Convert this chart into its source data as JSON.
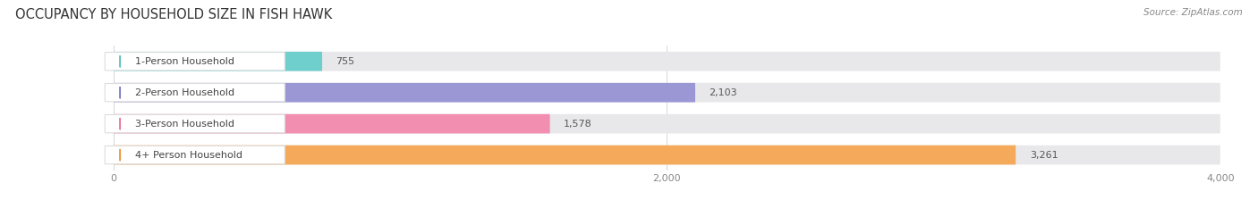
{
  "title": "OCCUPANCY BY HOUSEHOLD SIZE IN FISH HAWK",
  "source": "Source: ZipAtlas.com",
  "categories": [
    "1-Person Household",
    "2-Person Household",
    "3-Person Household",
    "4+ Person Household"
  ],
  "values": [
    755,
    2103,
    1578,
    3261
  ],
  "bar_colors": [
    "#6ecfcc",
    "#9b97d4",
    "#f28fb0",
    "#f5a95b"
  ],
  "dot_colors": [
    "#5bbfbc",
    "#7b77c4",
    "#e87098",
    "#e8943a"
  ],
  "bar_bg_color": "#e8e8eb",
  "xlim": [
    0,
    4000
  ],
  "xticks": [
    0,
    2000,
    4000
  ],
  "xticklabels": [
    "0",
    "2,000",
    "4,000"
  ],
  "value_labels": [
    "755",
    "2,103",
    "1,578",
    "3,261"
  ],
  "title_fontsize": 10.5,
  "source_fontsize": 7.5,
  "label_fontsize": 8,
  "value_fontsize": 8,
  "tick_fontsize": 8,
  "background_color": "#ffffff"
}
